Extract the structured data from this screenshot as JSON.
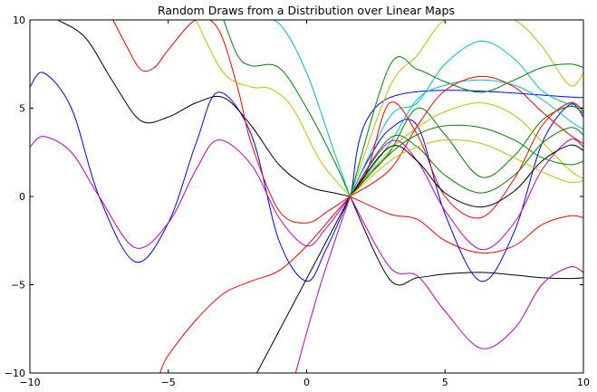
{
  "chart_data": {
    "type": "line",
    "title": "Random Draws from a Distribution over Linear Maps",
    "xlabel": "",
    "ylabel": "",
    "xlim": [
      -10,
      10
    ],
    "ylim": [
      -10,
      10
    ],
    "xticks": [
      {
        "value": -10,
        "label": "−10"
      },
      {
        "value": -5,
        "label": "−5"
      },
      {
        "value": 0,
        "label": "0"
      },
      {
        "value": 5,
        "label": "5"
      },
      {
        "value": 10,
        "label": "10"
      }
    ],
    "yticks": [
      {
        "value": -10,
        "label": "−10"
      },
      {
        "value": -5,
        "label": "−5"
      },
      {
        "value": 0,
        "label": "0"
      },
      {
        "value": 5,
        "label": "5"
      },
      {
        "value": 10,
        "label": "10"
      }
    ],
    "grid": false,
    "legend": "none",
    "series": [
      {
        "color": "#0000ff",
        "x": [
          -10,
          -9.5,
          -8.5,
          -7.5,
          -6.2,
          -5,
          -4,
          -3.2,
          -2,
          -1,
          0,
          0.7,
          1.57
        ],
        "y": [
          6.2,
          7.0,
          5.0,
          0.0,
          -3.7,
          -1.5,
          3.0,
          5.9,
          3.5,
          -2.5,
          -4.8,
          -3.0,
          0.0
        ]
      },
      {
        "color": "#bf00bf",
        "x": [
          -10,
          -9.5,
          -8.5,
          -7.5,
          -6.2,
          -5,
          -4,
          -3.2,
          -2,
          -1,
          0,
          0.7,
          1.57
        ],
        "y": [
          2.8,
          3.4,
          2.5,
          0.0,
          -2.9,
          -1.5,
          1.5,
          3.2,
          1.8,
          -1.2,
          -2.8,
          -1.8,
          0.0
        ]
      },
      {
        "color": "#000000",
        "x": [
          -9.0,
          -8,
          -7,
          -6,
          -5,
          -4,
          -3,
          -2,
          -1,
          0,
          1,
          1.57
        ],
        "y": [
          10.0,
          9.0,
          6.5,
          4.3,
          4.5,
          5.3,
          5.6,
          4.0,
          1.8,
          0.6,
          0.2,
          0.0
        ]
      },
      {
        "color": "#ff0000",
        "x": [
          -7.0,
          -6.5,
          -6,
          -5.5,
          -5,
          -4,
          -3.2,
          -2.5,
          -2,
          -1,
          0,
          0.8,
          1.57
        ],
        "y": [
          10.0,
          8.5,
          7.2,
          7.3,
          8.3,
          10.0,
          9.5,
          6.2,
          3.0,
          -0.8,
          -1.5,
          -0.8,
          0.0
        ]
      },
      {
        "color": "#bfbf00",
        "x": [
          -4.0,
          -3,
          -2,
          -1.3,
          -0.5,
          0.5,
          1.57
        ],
        "y": [
          10.0,
          7.0,
          6.2,
          6.1,
          5.0,
          2.0,
          0.0
        ]
      },
      {
        "color": "#008000",
        "x": [
          -3.0,
          -2.5,
          -2,
          -1,
          0,
          1,
          1.57
        ],
        "y": [
          10.0,
          8.0,
          7.4,
          7.3,
          5.0,
          2.0,
          0.0
        ]
      },
      {
        "color": "#00bfbf",
        "x": [
          -2.0,
          -1,
          0,
          1,
          1.57
        ],
        "y": [
          10.0,
          9.8,
          7.0,
          2.5,
          0.0
        ]
      },
      {
        "color": "#ff0000",
        "x": [
          -5.3,
          -5,
          -4,
          -3,
          -2,
          -1,
          0,
          1,
          1.57
        ],
        "y": [
          -10.0,
          -9.0,
          -7.0,
          -5.5,
          -4.8,
          -4.2,
          -2.8,
          -1.0,
          0.0
        ]
      },
      {
        "color": "#000000",
        "x": [
          -1.8,
          1.57
        ],
        "y": [
          -10.0,
          0.0
        ]
      },
      {
        "color": "#bf00bf",
        "x": [
          -0.4,
          0.5,
          1.57
        ],
        "y": [
          -10.0,
          -5.0,
          0.0
        ]
      },
      {
        "color": "#0000ff",
        "x": [
          1.57,
          3.0,
          10.0
        ],
        "y": [
          0.0,
          5.6,
          5.6
        ]
      },
      {
        "color": "#000000",
        "x": [
          1.57,
          3.0,
          4,
          5,
          6.3,
          7.5,
          8.5,
          9.5,
          10
        ],
        "y": [
          0.0,
          -4.7,
          -4.6,
          -4.4,
          -4.3,
          -4.45,
          -4.6,
          -4.65,
          -4.6
        ]
      },
      {
        "color": "#bf00bf",
        "x": [
          1.57,
          3.0,
          4,
          5,
          6.3,
          7.5,
          8.5,
          9.5,
          10
        ],
        "y": [
          0.0,
          -4.0,
          -4.5,
          -6.5,
          -8.6,
          -7.5,
          -5.0,
          -4.0,
          -4.3
        ]
      },
      {
        "color": "#ff0000",
        "x": [
          1.57,
          3.0,
          4,
          5,
          6.3,
          7.5,
          8.5,
          9.5,
          10
        ],
        "y": [
          0.0,
          -1.0,
          -1.3,
          -2.5,
          -3.2,
          -2.8,
          -1.6,
          -1.1,
          -1.2
        ]
      },
      {
        "color": "#0000ff",
        "x": [
          1.57,
          2.2,
          3.0,
          4,
          5,
          6.3,
          7.5,
          8.5,
          9.5,
          10
        ],
        "y": [
          0.0,
          2.0,
          3.8,
          4.0,
          -1.0,
          -4.8,
          -2.0,
          3.0,
          5.2,
          4.5
        ]
      },
      {
        "color": "#00bfbf",
        "x": [
          1.57,
          3.0,
          4,
          5,
          6.3,
          7.5,
          8.5,
          9.5,
          10
        ],
        "y": [
          0.0,
          4.5,
          5.3,
          7.5,
          8.8,
          7.8,
          6.0,
          5.2,
          5.0
        ]
      },
      {
        "color": "#bfbf00",
        "x": [
          1.57,
          3.0,
          4,
          5,
          6.3,
          7.5,
          8.5,
          9.5,
          10
        ],
        "y": [
          0.0,
          6.2,
          8.0,
          10.0,
          10.0,
          10.0,
          8.5,
          6.3,
          7.0
        ]
      },
      {
        "color": "#008000",
        "x": [
          1.57,
          3.0,
          4,
          5,
          6.3,
          7.5,
          8.5,
          9.5,
          10
        ],
        "y": [
          0.0,
          7.4,
          7.2,
          6.5,
          5.9,
          6.6,
          7.3,
          7.5,
          7.3
        ]
      },
      {
        "color": "#008000",
        "x": [
          1.57,
          2.2,
          3.0,
          4,
          5,
          6.3,
          7.5,
          8.5,
          9.5,
          10
        ],
        "y": [
          0.0,
          1.2,
          2.5,
          5.0,
          3.5,
          1.1,
          2.3,
          4.3,
          5.1,
          4.7
        ]
      },
      {
        "color": "#00bfbf",
        "x": [
          1.57,
          3.0,
          4,
          5,
          6.3,
          7.5,
          8.5,
          9.5,
          10
        ],
        "y": [
          0.0,
          3.0,
          5.5,
          6.3,
          6.6,
          6.3,
          5.5,
          4.3,
          3.8
        ]
      },
      {
        "color": "#bfbf00",
        "x": [
          1.57,
          3.0,
          4,
          5,
          6.3,
          7.5,
          8.5,
          9.5,
          10
        ],
        "y": [
          0.0,
          2.6,
          3.9,
          4.8,
          5.3,
          4.6,
          3.1,
          1.5,
          1.0
        ]
      },
      {
        "color": "#ff0000",
        "x": [
          1.57,
          2.2,
          3.0,
          4,
          5,
          6.3,
          7.5,
          8.5,
          9.5,
          10
        ],
        "y": [
          0.0,
          1.5,
          5.3,
          3.5,
          0.0,
          -1.2,
          1.0,
          4.0,
          5.3,
          4.8
        ]
      },
      {
        "color": "#ff0000",
        "x": [
          1.57,
          3.0,
          4,
          5,
          6.3,
          7.5,
          8.5,
          9.5,
          10
        ],
        "y": [
          0.0,
          1.5,
          4.0,
          6.0,
          6.8,
          6.2,
          4.8,
          3.5,
          3.0
        ]
      },
      {
        "color": "#008000",
        "x": [
          1.57,
          3.0,
          4,
          5,
          6.3,
          7.5,
          8.5,
          9.5,
          10
        ],
        "y": [
          0.0,
          3.3,
          2.8,
          1.2,
          0.2,
          1.2,
          3.0,
          3.9,
          3.5
        ]
      },
      {
        "color": "#bf00bf",
        "x": [
          1.57,
          3.0,
          4,
          5,
          6.3,
          7.5,
          8.5,
          9.5,
          10
        ],
        "y": [
          0.0,
          3.1,
          2.0,
          -0.8,
          -3.0,
          -1.5,
          1.5,
          3.2,
          2.8
        ]
      },
      {
        "color": "#000000",
        "x": [
          1.57,
          3.0,
          4,
          5,
          6.3,
          7.5,
          8.5,
          9.5,
          10
        ],
        "y": [
          0.0,
          2.8,
          2.0,
          0.2,
          -0.6,
          0.3,
          2.0,
          2.9,
          2.6
        ]
      },
      {
        "color": "#008000",
        "x": [
          1.57,
          3.0,
          4,
          5,
          6.3,
          7.5,
          8.5,
          9.5,
          10
        ],
        "y": [
          0.0,
          2.4,
          3.5,
          4.0,
          3.9,
          3.2,
          2.2,
          1.8,
          2.0
        ]
      },
      {
        "color": "#bfbf00",
        "x": [
          1.57,
          3.0,
          4,
          5,
          6.3,
          7.5,
          8.5,
          9.5,
          10
        ],
        "y": [
          0.0,
          2.0,
          2.8,
          3.2,
          3.0,
          2.2,
          1.4,
          0.8,
          0.9
        ]
      }
    ]
  }
}
